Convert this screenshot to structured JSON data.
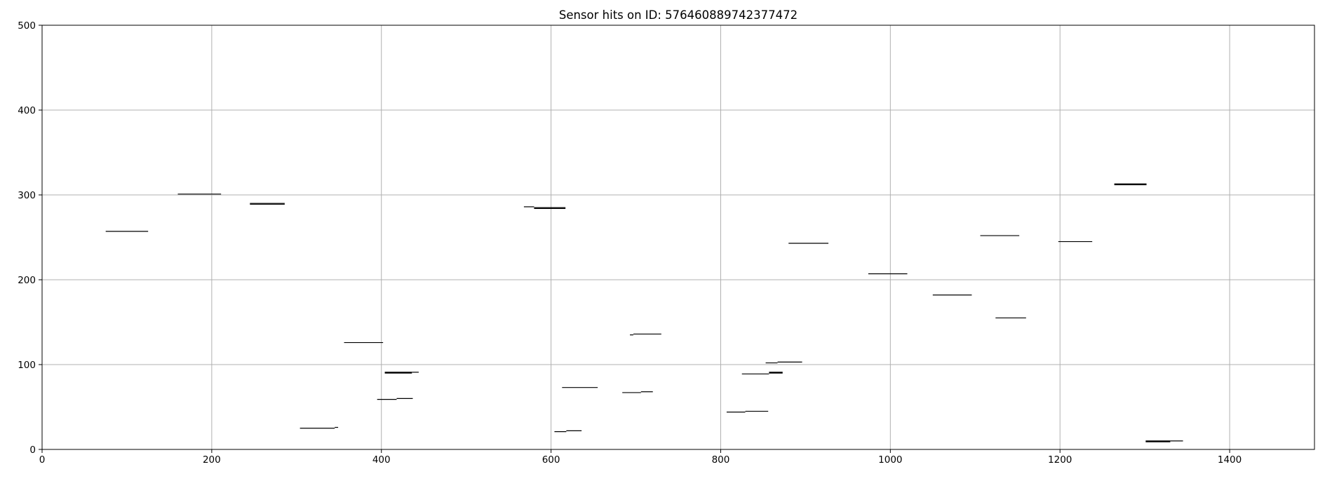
{
  "chart_data": {
    "type": "line",
    "title": "Sensor hits on ID: 576460889742377472",
    "xlabel": "",
    "ylabel": "",
    "xlim": [
      0,
      1500
    ],
    "ylim": [
      0,
      500
    ],
    "xticks": [
      0,
      200,
      400,
      600,
      800,
      1000,
      1200,
      1400
    ],
    "yticks": [
      0,
      100,
      200,
      300,
      400,
      500
    ],
    "grid": true,
    "line_color": "#000000",
    "segments": [
      {
        "x": [
          75,
          125
        ],
        "y": [
          257,
          257
        ]
      },
      {
        "x": [
          160,
          211
        ],
        "y": [
          301,
          301
        ]
      },
      {
        "x": [
          245,
          286
        ],
        "y": [
          289,
          289
        ]
      },
      {
        "x": [
          245,
          286
        ],
        "y": [
          290,
          290
        ]
      },
      {
        "x": [
          304,
          345
        ],
        "y": [
          25,
          25
        ]
      },
      {
        "x": [
          345,
          349
        ],
        "y": [
          26,
          26
        ]
      },
      {
        "x": [
          356,
          402
        ],
        "y": [
          126,
          126
        ]
      },
      {
        "x": [
          395,
          418
        ],
        "y": [
          59,
          59
        ]
      },
      {
        "x": [
          418,
          437
        ],
        "y": [
          60,
          60
        ]
      },
      {
        "x": [
          404,
          436
        ],
        "y": [
          90,
          90
        ]
      },
      {
        "x": [
          404,
          436
        ],
        "y": [
          91,
          91
        ]
      },
      {
        "x": [
          436,
          444
        ],
        "y": [
          91,
          91
        ]
      },
      {
        "x": [
          568,
          580
        ],
        "y": [
          286,
          286
        ]
      },
      {
        "x": [
          580,
          617
        ],
        "y": [
          284,
          284
        ]
      },
      {
        "x": [
          580,
          617
        ],
        "y": [
          285,
          285
        ]
      },
      {
        "x": [
          604,
          618
        ],
        "y": [
          21,
          21
        ]
      },
      {
        "x": [
          618,
          636
        ],
        "y": [
          22,
          22
        ]
      },
      {
        "x": [
          613,
          655
        ],
        "y": [
          73,
          73
        ]
      },
      {
        "x": [
          684,
          706
        ],
        "y": [
          67,
          67
        ]
      },
      {
        "x": [
          706,
          720
        ],
        "y": [
          68,
          68
        ]
      },
      {
        "x": [
          693,
          697
        ],
        "y": [
          135,
          135
        ]
      },
      {
        "x": [
          697,
          730
        ],
        "y": [
          136,
          136
        ]
      },
      {
        "x": [
          807,
          829
        ],
        "y": [
          44,
          44
        ]
      },
      {
        "x": [
          829,
          856
        ],
        "y": [
          45,
          45
        ]
      },
      {
        "x": [
          825,
          857
        ],
        "y": [
          89,
          89
        ]
      },
      {
        "x": [
          857,
          873
        ],
        "y": [
          90,
          90
        ]
      },
      {
        "x": [
          857,
          873
        ],
        "y": [
          91,
          91
        ]
      },
      {
        "x": [
          853,
          867
        ],
        "y": [
          102,
          102
        ]
      },
      {
        "x": [
          867,
          896
        ],
        "y": [
          103,
          103
        ]
      },
      {
        "x": [
          880,
          927
        ],
        "y": [
          243,
          243
        ]
      },
      {
        "x": [
          974,
          1020
        ],
        "y": [
          207,
          207
        ]
      },
      {
        "x": [
          1050,
          1096
        ],
        "y": [
          182,
          182
        ]
      },
      {
        "x": [
          1106,
          1152
        ],
        "y": [
          252,
          252
        ]
      },
      {
        "x": [
          1124,
          1160
        ],
        "y": [
          155,
          155
        ]
      },
      {
        "x": [
          1198,
          1238
        ],
        "y": [
          245,
          245
        ]
      },
      {
        "x": [
          1264,
          1302
        ],
        "y": [
          312,
          312
        ]
      },
      {
        "x": [
          1264,
          1302
        ],
        "y": [
          313,
          313
        ]
      },
      {
        "x": [
          1301,
          1330
        ],
        "y": [
          9,
          9
        ]
      },
      {
        "x": [
          1301,
          1330
        ],
        "y": [
          10,
          10
        ]
      },
      {
        "x": [
          1330,
          1345
        ],
        "y": [
          10,
          10
        ]
      }
    ]
  }
}
